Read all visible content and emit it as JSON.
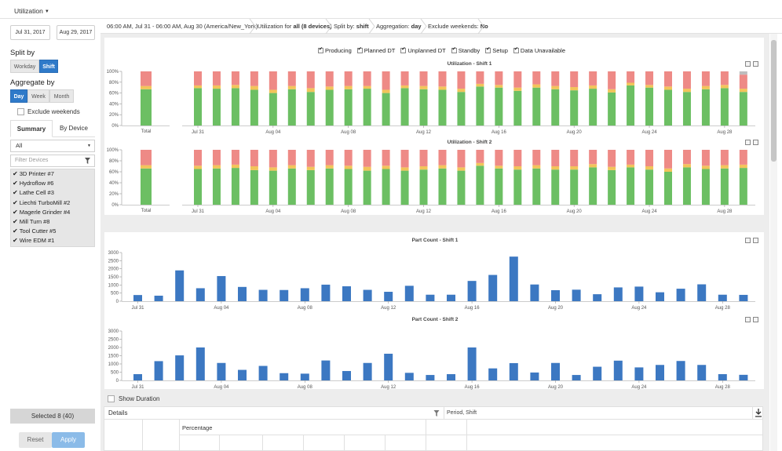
{
  "topbar": {
    "menu_label": "Utilization"
  },
  "sidebar": {
    "date_from": "Jul 31, 2017",
    "date_to": "Aug 29, 2017",
    "split_by_label": "Split by",
    "split_options": [
      "Workday",
      "Shift"
    ],
    "split_active": "Shift",
    "aggregate_label": "Aggregate by",
    "aggregate_options": [
      "Day",
      "Week",
      "Month"
    ],
    "aggregate_active": "Day",
    "exclude_weekends_label": "Exclude weekends",
    "tabs": [
      "Summary",
      "By Device"
    ],
    "tab_active": "Summary",
    "device_select_value": "All",
    "filter_placeholder": "Filter Devices",
    "devices": [
      "3D Printer #7",
      "Hydroflow #6",
      "Lathe Cell #3",
      "Liechti TurboMill #2",
      "Magerle Grinder #4",
      "Mill Turn #8",
      "Tool Cutter #5",
      "Wire EDM #1"
    ],
    "selected_label": "Selected 8 (40)",
    "reset_label": "Reset",
    "apply_label": "Apply"
  },
  "header": {
    "time_range": "06:00 AM, Jul 31 - 06:00 AM, Aug 30",
    "timezone": "(America/New_York)",
    "utilization_prefix": "Utilization for",
    "utilization_value": "all (8 devices)",
    "split_prefix": "Split by:",
    "split_value": "shift",
    "aggregation_prefix": "Aggregation:",
    "aggregation_value": "day",
    "exclude_prefix": "Exclude weekends:",
    "exclude_value": "No"
  },
  "legend": [
    "Producing",
    "Planned DT",
    "Unplanned DT",
    "Standby",
    "Setup",
    "Data Unavailable"
  ],
  "colors": {
    "producing": "#6cbf63",
    "standby": "#f2c45a",
    "unplanned": "#ee8a86",
    "unavailable": "#bdbdbd",
    "parts": "#3c78c2",
    "accent": "#2f7ac9"
  },
  "chart_data": [
    {
      "type": "bar",
      "title": "Utilization - Shift 1",
      "stacked": true,
      "ylim": [
        0,
        100
      ],
      "y_ticks": [
        "0%",
        "20%",
        "40%",
        "60%",
        "80%",
        "100%"
      ],
      "total_label": "Total",
      "x_tick_labels": [
        "Jul 31",
        "Aug 04",
        "Aug 08",
        "Aug 12",
        "Aug 16",
        "Aug 20",
        "Aug 24",
        "Aug 28"
      ],
      "total": {
        "producing": 67,
        "standby": 6,
        "unplanned": 27,
        "unavailable": 0
      },
      "series": [
        {
          "name": "Producing",
          "values": [
            69,
            68,
            69,
            66,
            60,
            67,
            62,
            66,
            67,
            68,
            60,
            69,
            67,
            66,
            62,
            72,
            70,
            64,
            70,
            67,
            65,
            68,
            61,
            74,
            70,
            66,
            62,
            67,
            69,
            62
          ]
        },
        {
          "name": "Standby",
          "values": [
            5,
            6,
            6,
            7,
            6,
            6,
            7,
            6,
            6,
            5,
            6,
            5,
            6,
            6,
            6,
            5,
            5,
            6,
            6,
            6,
            6,
            6,
            6,
            5,
            5,
            6,
            6,
            6,
            6,
            6
          ]
        },
        {
          "name": "Unplanned DT",
          "values": [
            26,
            26,
            25,
            27,
            34,
            27,
            31,
            28,
            27,
            27,
            34,
            26,
            27,
            28,
            32,
            23,
            25,
            30,
            24,
            27,
            29,
            26,
            33,
            21,
            25,
            28,
            32,
            27,
            25,
            26
          ]
        },
        {
          "name": "Data Unavailable",
          "values": [
            0,
            0,
            0,
            0,
            0,
            0,
            0,
            0,
            0,
            0,
            0,
            0,
            0,
            0,
            0,
            0,
            0,
            0,
            0,
            0,
            0,
            0,
            0,
            0,
            0,
            0,
            0,
            0,
            0,
            6
          ]
        }
      ]
    },
    {
      "type": "bar",
      "title": "Utilization - Shift 2",
      "stacked": true,
      "ylim": [
        0,
        100
      ],
      "y_ticks": [
        "0%",
        "20%",
        "40%",
        "60%",
        "80%",
        "100%"
      ],
      "total_label": "Total",
      "x_tick_labels": [
        "Jul 31",
        "Aug 04",
        "Aug 08",
        "Aug 12",
        "Aug 16",
        "Aug 20",
        "Aug 24",
        "Aug 28"
      ],
      "total": {
        "producing": 66,
        "standby": 6,
        "unplanned": 28,
        "unavailable": 0
      },
      "series": [
        {
          "name": "Producing",
          "values": [
            65,
            66,
            67,
            63,
            62,
            66,
            63,
            66,
            65,
            62,
            65,
            62,
            64,
            66,
            62,
            71,
            66,
            64,
            66,
            64,
            64,
            68,
            63,
            68,
            64,
            60,
            68,
            65,
            66,
            67
          ]
        },
        {
          "name": "Standby",
          "values": [
            6,
            6,
            6,
            7,
            6,
            6,
            6,
            6,
            6,
            7,
            6,
            6,
            6,
            6,
            6,
            5,
            5,
            6,
            6,
            6,
            6,
            6,
            6,
            5,
            6,
            6,
            6,
            6,
            6,
            6
          ]
        },
        {
          "name": "Unplanned DT",
          "values": [
            29,
            28,
            27,
            30,
            32,
            28,
            31,
            28,
            29,
            31,
            29,
            32,
            30,
            28,
            32,
            24,
            29,
            30,
            28,
            30,
            30,
            26,
            31,
            27,
            30,
            34,
            26,
            29,
            28,
            27
          ]
        },
        {
          "name": "Data Unavailable",
          "values": [
            0,
            0,
            0,
            0,
            0,
            0,
            0,
            0,
            0,
            0,
            0,
            0,
            0,
            0,
            0,
            0,
            0,
            0,
            0,
            0,
            0,
            0,
            0,
            0,
            0,
            0,
            0,
            0,
            0,
            0
          ]
        }
      ]
    },
    {
      "type": "bar",
      "title": "Part Count - Shift 1",
      "ylim": [
        0,
        3000
      ],
      "y_ticks": [
        "0",
        "500",
        "1000",
        "1500",
        "2000",
        "2500",
        "3000"
      ],
      "x_tick_labels": [
        "Jul 31",
        "Aug 04",
        "Aug 08",
        "Aug 12",
        "Aug 16",
        "Aug 20",
        "Aug 24",
        "Aug 28"
      ],
      "values": [
        380,
        340,
        1900,
        800,
        1550,
        880,
        700,
        690,
        800,
        1020,
        920,
        700,
        580,
        950,
        400,
        400,
        1250,
        1620,
        2750,
        1030,
        680,
        710,
        430,
        850,
        900,
        550,
        770,
        1040,
        400,
        390
      ]
    },
    {
      "type": "bar",
      "title": "Part Count - Shift 2",
      "ylim": [
        0,
        3000
      ],
      "y_ticks": [
        "0",
        "500",
        "1000",
        "1500",
        "2000",
        "2500",
        "3000"
      ],
      "x_tick_labels": [
        "Jul 31",
        "Aug 04",
        "Aug 08",
        "Aug 12",
        "Aug 16",
        "Aug 20",
        "Aug 24",
        "Aug 28"
      ],
      "values": [
        380,
        1170,
        1520,
        2000,
        1060,
        640,
        880,
        440,
        410,
        1210,
        570,
        1060,
        1620,
        460,
        330,
        380,
        2000,
        730,
        1050,
        480,
        1060,
        330,
        830,
        1200,
        790,
        940,
        1180,
        940,
        380,
        340
      ]
    }
  ],
  "bottom": {
    "show_duration_label": "Show Duration",
    "details_label": "Details",
    "period_value": "Period, Shift",
    "percentage_label": "Percentage"
  }
}
